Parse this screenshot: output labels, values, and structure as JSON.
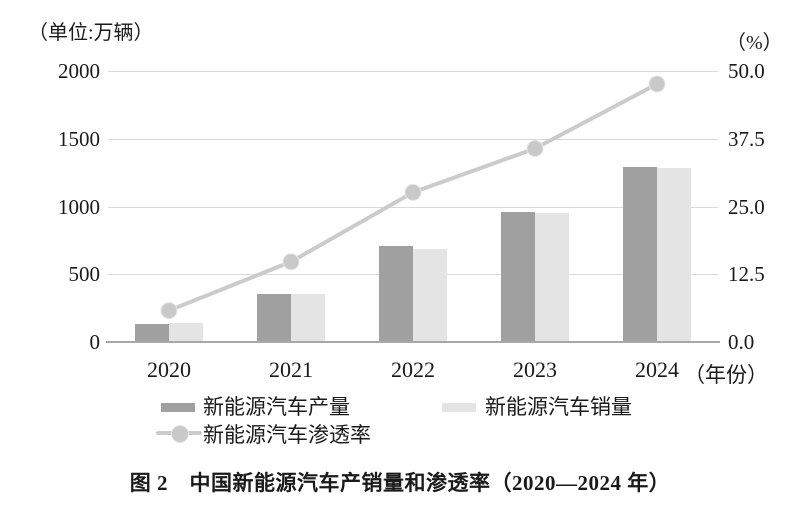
{
  "figure": {
    "unit_left": "（单位:万辆）",
    "unit_right": "（%）",
    "x_axis_suffix": "（年份）",
    "caption": "图 2　中国新能源汽车产销量和渗透率（2020—2024 年）"
  },
  "legend": {
    "production": "新能源汽车产量",
    "sales": "新能源汽车销量",
    "penetration": "新能源汽车渗透率"
  },
  "colors": {
    "production": "#a0a0a0",
    "sales": "#e4e4e4",
    "line": "#cbcbcb",
    "marker": "#c9c9c9",
    "marker_edge": "#e6e6e6",
    "gridline": "#dadada",
    "axis": "#a8a8a8",
    "text": "#1a1a1a"
  },
  "chart_data": {
    "type": "bar",
    "subtype": "grouped-bars-with-line",
    "title": "中国新能源汽车产销量和渗透率（2020—2024 年）",
    "categories": [
      "2020",
      "2021",
      "2022",
      "2023",
      "2024"
    ],
    "series": [
      {
        "name": "新能源汽车产量",
        "type": "bar",
        "axis": "left",
        "values": [
          136.6,
          354.5,
          705.8,
          958.7,
          1288.8
        ]
      },
      {
        "name": "新能源汽车销量",
        "type": "bar",
        "axis": "left",
        "values": [
          136.7,
          352.1,
          688.7,
          949.5,
          1286.6
        ]
      },
      {
        "name": "新能源汽车渗透率",
        "type": "line",
        "axis": "right",
        "values": [
          5.8,
          14.8,
          27.6,
          35.7,
          47.6
        ]
      }
    ],
    "left_axis": {
      "label": "（单位:万辆）",
      "ticks": [
        "2000",
        "1500",
        "1000",
        "500",
        "0"
      ],
      "range": [
        0,
        2000
      ]
    },
    "right_axis": {
      "label": "（%）",
      "ticks": [
        "50.0",
        "37.5",
        "25.0",
        "12.5",
        "0.0"
      ],
      "range": [
        0,
        50
      ]
    },
    "xlabel": "（年份）",
    "grid": true,
    "legend_position": "bottom"
  }
}
